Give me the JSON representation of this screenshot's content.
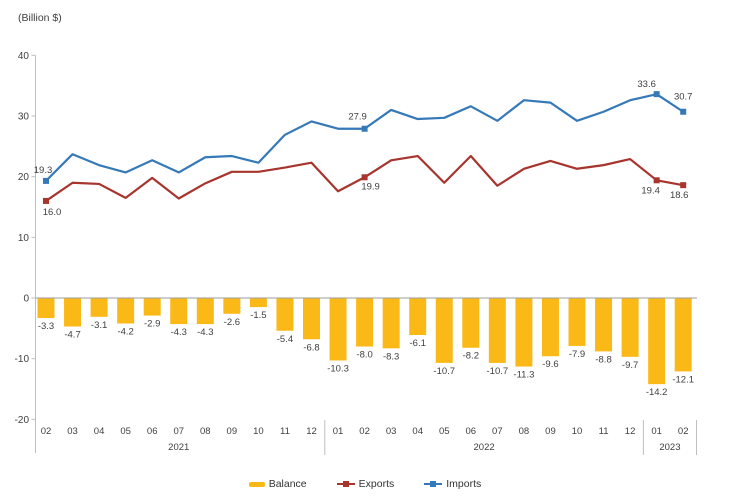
{
  "chart": {
    "colors": {
      "balance": "#FBB917",
      "exports": "#A7342D",
      "imports": "#3579B8",
      "axis_line": "#BFBFBF",
      "zero_line": "#9E9E9E",
      "separator": "#BFBFBF",
      "text": "#404040"
    },
    "legend": [
      {
        "label": "Balance",
        "series": "balance",
        "swatch": "bar-swatch-icon"
      },
      {
        "label": "Exports",
        "series": "exports",
        "swatch": "line-swatch-icon"
      },
      {
        "label": "Imports",
        "series": "imports",
        "swatch": "line-swatch-icon"
      }
    ]
  },
  "chart_data": {
    "type": "bar",
    "title": "",
    "xlabel": "",
    "ylabel": "(Billion $)",
    "ylim": [
      -20,
      40
    ],
    "yticks": [
      40,
      30,
      20,
      10,
      0,
      -10,
      -20
    ],
    "grid": false,
    "legend_position": "bottom",
    "categories": [
      "02",
      "03",
      "04",
      "05",
      "06",
      "07",
      "08",
      "09",
      "10",
      "11",
      "12",
      "01",
      "02",
      "03",
      "04",
      "05",
      "06",
      "07",
      "08",
      "09",
      "10",
      "11",
      "12",
      "01",
      "02"
    ],
    "year_groups": [
      {
        "label": "2021",
        "start": 0,
        "end": 10
      },
      {
        "label": "2022",
        "start": 11,
        "end": 22
      },
      {
        "label": "2023",
        "start": 23,
        "end": 24
      }
    ],
    "series": [
      {
        "name": "Balance",
        "type": "bar",
        "values": [
          -3.3,
          -4.7,
          -3.1,
          -4.2,
          -2.9,
          -4.3,
          -4.3,
          -2.6,
          -1.5,
          -5.4,
          -6.8,
          -10.3,
          -8.0,
          -8.3,
          -6.1,
          -10.7,
          -8.2,
          -10.7,
          -11.3,
          -9.6,
          -7.9,
          -8.8,
          -9.7,
          -14.2,
          -12.1
        ],
        "label_all_points": true
      },
      {
        "name": "Exports",
        "type": "line",
        "values": [
          16.0,
          19.0,
          18.8,
          16.5,
          19.8,
          16.4,
          18.9,
          20.8,
          20.8,
          21.5,
          22.3,
          17.6,
          19.9,
          22.7,
          23.4,
          19.0,
          23.4,
          18.5,
          21.3,
          22.6,
          21.3,
          21.9,
          22.9,
          19.4,
          18.6
        ],
        "point_labels": [
          {
            "i": 0,
            "text": "16.0",
            "dx": 6,
            "dy": 14
          },
          {
            "i": 12,
            "text": "19.9",
            "dx": 6,
            "dy": 12
          },
          {
            "i": 23,
            "text": "19.4",
            "dx": -6,
            "dy": 13
          },
          {
            "i": 24,
            "text": "18.6",
            "dx": -4,
            "dy": 13
          }
        ]
      },
      {
        "name": "Imports",
        "type": "line",
        "values": [
          19.3,
          23.7,
          21.9,
          20.7,
          22.7,
          20.7,
          23.2,
          23.4,
          22.3,
          26.9,
          29.1,
          27.9,
          27.9,
          31.0,
          29.5,
          29.7,
          31.6,
          29.2,
          32.6,
          32.2,
          29.2,
          30.7,
          32.6,
          33.6,
          30.7
        ],
        "point_labels": [
          {
            "i": 0,
            "text": "19.3",
            "dx": -3,
            "dy": -8
          },
          {
            "i": 12,
            "text": "27.9",
            "dx": -7,
            "dy": -9
          },
          {
            "i": 23,
            "text": "33.6",
            "dx": -10,
            "dy": -7
          },
          {
            "i": 24,
            "text": "30.7",
            "dx": 0,
            "dy": -12
          }
        ]
      }
    ]
  }
}
